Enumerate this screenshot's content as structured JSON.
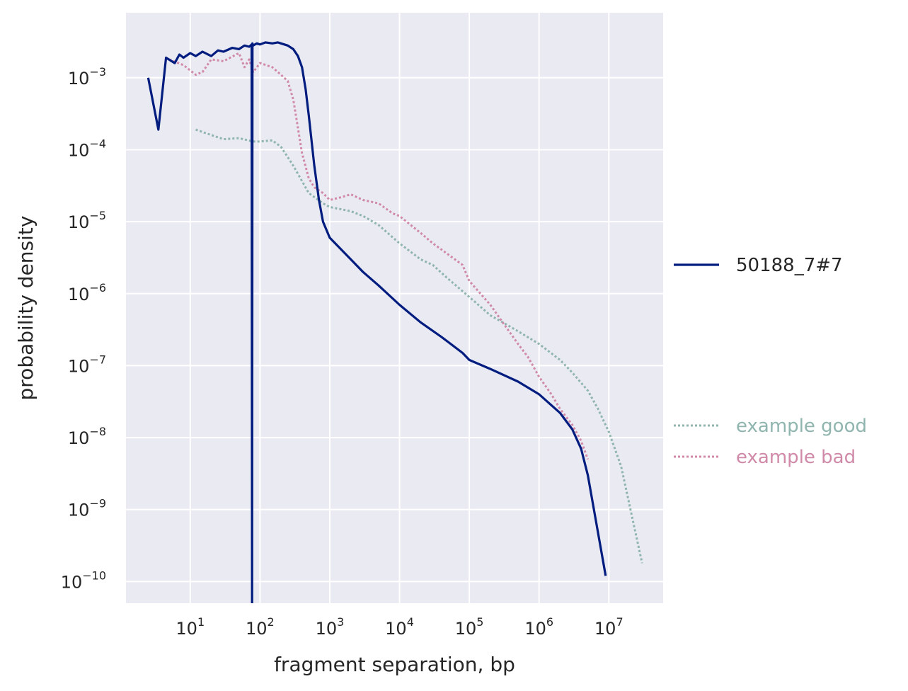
{
  "chart_data": {
    "type": "line",
    "title": "",
    "xlabel": "fragment separation, bp",
    "ylabel": "probability density",
    "xscale": "log",
    "yscale": "log",
    "xlim": [
      1.2,
      60000000
    ],
    "ylim": [
      5e-11,
      0.008
    ],
    "grid": true,
    "background": "#eaeaf2",
    "x_ticks": [
      {
        "base": "10",
        "exp": "1",
        "value": 10
      },
      {
        "base": "10",
        "exp": "2",
        "value": 100
      },
      {
        "base": "10",
        "exp": "3",
        "value": 1000
      },
      {
        "base": "10",
        "exp": "4",
        "value": 10000
      },
      {
        "base": "10",
        "exp": "5",
        "value": 100000
      },
      {
        "base": "10",
        "exp": "6",
        "value": 1000000
      },
      {
        "base": "10",
        "exp": "7",
        "value": 10000000
      }
    ],
    "y_ticks": [
      {
        "base": "10",
        "exp": "−10",
        "value": 1e-10
      },
      {
        "base": "10",
        "exp": "−9",
        "value": 1e-09
      },
      {
        "base": "10",
        "exp": "−8",
        "value": 1e-08
      },
      {
        "base": "10",
        "exp": "−7",
        "value": 1e-07
      },
      {
        "base": "10",
        "exp": "−6",
        "value": 1e-06
      },
      {
        "base": "10",
        "exp": "−5",
        "value": 1e-05
      },
      {
        "base": "10",
        "exp": "−4",
        "value": 0.0001
      },
      {
        "base": "10",
        "exp": "−3",
        "value": 0.001
      }
    ],
    "series": [
      {
        "name": "50188_7#7",
        "color": "#001c7f",
        "style": "solid",
        "x": [
          2.5,
          3.5,
          4.5,
          6,
          7,
          8,
          10,
          12,
          15,
          20,
          25,
          30,
          40,
          50,
          60,
          70,
          76,
          77,
          78,
          80,
          90,
          100,
          120,
          150,
          180,
          200,
          250,
          300,
          350,
          400,
          450,
          500,
          600,
          700,
          800,
          1000,
          1500,
          2000,
          3000,
          5000,
          10000,
          20000,
          40000,
          80000,
          100000,
          200000,
          500000,
          1000000,
          2000000,
          3000000,
          4000000,
          5000000,
          9000000
        ],
        "y": [
          0.001,
          0.00019,
          0.0019,
          0.0016,
          0.0021,
          0.0019,
          0.0022,
          0.002,
          0.0023,
          0.002,
          0.0024,
          0.0023,
          0.0026,
          0.0025,
          0.0028,
          0.0027,
          0.0029,
          5e-11,
          0.003,
          0.0028,
          0.003,
          0.0029,
          0.0031,
          0.003,
          0.0031,
          0.003,
          0.0028,
          0.0025,
          0.002,
          0.0014,
          0.0007,
          0.0003,
          6e-05,
          2e-05,
          1e-05,
          6e-06,
          4e-06,
          3e-06,
          2e-06,
          1.3e-06,
          7e-07,
          4e-07,
          2.5e-07,
          1.5e-07,
          1.2e-07,
          9e-08,
          6e-08,
          4e-08,
          2.2e-08,
          1.3e-08,
          7e-09,
          3e-09,
          1.2e-10
        ]
      },
      {
        "name": "example good",
        "color": "#8fb5ae",
        "style": "dotted",
        "x": [
          12,
          20,
          30,
          50,
          80,
          100,
          150,
          200,
          300,
          500,
          800,
          1000,
          2000,
          3000,
          5000,
          10000,
          20000,
          30000,
          50000,
          100000,
          200000,
          300000,
          500000,
          1000000,
          2000000,
          3000000,
          5000000,
          7000000,
          10000000,
          15000000,
          30000000
        ],
        "y": [
          0.00019,
          0.00016,
          0.00014,
          0.000145,
          0.00013,
          0.00013,
          0.000135,
          0.00011,
          6e-05,
          2.5e-05,
          1.8e-05,
          1.6e-05,
          1.4e-05,
          1.2e-05,
          9e-06,
          5e-06,
          3e-06,
          2.5e-06,
          1.6e-06,
          9e-07,
          5e-07,
          4e-07,
          3e-07,
          2e-07,
          1.2e-07,
          8e-08,
          4.5e-08,
          2.5e-08,
          1.2e-08,
          4e-09,
          1.8e-10
        ]
      },
      {
        "name": "example bad",
        "color": "#d08aa8",
        "style": "dotted",
        "x": [
          5,
          8,
          12,
          15,
          20,
          30,
          50,
          60,
          70,
          80,
          100,
          150,
          200,
          250,
          300,
          350,
          400,
          500,
          600,
          800,
          1000,
          1500,
          2000,
          3000,
          5000,
          8000,
          10000,
          20000,
          30000,
          50000,
          80000,
          100000,
          200000,
          300000,
          500000,
          700000,
          1000000,
          1500000,
          2000000,
          3000000,
          4000000,
          5000000
        ],
        "y": [
          0.0018,
          0.0015,
          0.0011,
          0.0012,
          0.0018,
          0.0017,
          0.0022,
          0.0014,
          0.0018,
          0.0012,
          0.0016,
          0.0014,
          0.0011,
          0.0009,
          0.0005,
          0.0002,
          9e-05,
          4e-05,
          3e-05,
          2.5e-05,
          2e-05,
          2.2e-05,
          2.4e-05,
          2e-05,
          1.8e-05,
          1.3e-05,
          1.2e-05,
          7e-06,
          5e-06,
          3.5e-06,
          2.5e-06,
          1.5e-06,
          7e-07,
          4e-07,
          2e-07,
          1.3e-07,
          7e-08,
          4e-08,
          2.5e-08,
          1.5e-08,
          9e-09,
          5e-09
        ]
      }
    ],
    "legend": {
      "main": {
        "label": "50188_7#7",
        "placement": "right"
      },
      "examples": [
        {
          "label": "example good",
          "color": "#8fb5ae"
        },
        {
          "label": "example bad",
          "color": "#d08aa8"
        }
      ]
    }
  }
}
